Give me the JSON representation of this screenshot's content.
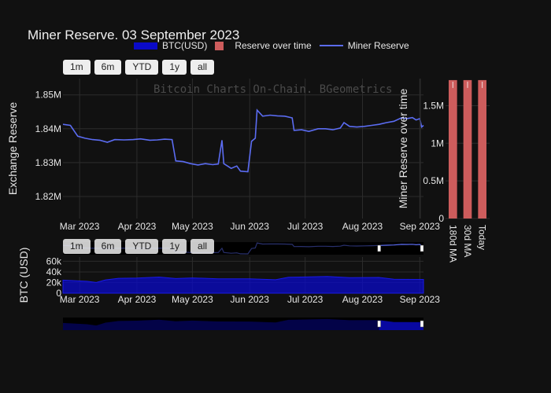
{
  "title": "Miner Reserve. 03 September 2023",
  "watermark": "Bitcoin Charts On-Chain.  BGeometrics",
  "legend": [
    {
      "label": "BTC(USD)",
      "color": "#0a0ac8"
    },
    {
      "label": "Reserve over time",
      "color": "#cd5c5c"
    },
    {
      "label": "Miner Reserve",
      "color": "#5b6cf2"
    }
  ],
  "range_buttons": [
    "1m",
    "6m",
    "YTD",
    "1y",
    "all"
  ],
  "chart_data": [
    {
      "type": "line",
      "name": "Miner Reserve",
      "xlabel": "",
      "ylabel": "Exchange Reserve",
      "x_ticks": [
        "Mar 2023",
        "Apr 2023",
        "May 2023",
        "Jun 2023",
        "Jul 2023",
        "Aug 2023",
        "Sep 2023"
      ],
      "y_ticks": [
        "1.82M",
        "1.83M",
        "1.84M",
        "1.85M"
      ],
      "ylim": [
        1.8135,
        1.8548
      ],
      "x_range": [
        "2023-02-20",
        "2023-09-03"
      ],
      "grid": true,
      "series": [
        {
          "name": "Miner Reserve",
          "color": "#5b6cf2",
          "points": [
            [
              "2023-02-20",
              1.8413
            ],
            [
              "2023-02-24",
              1.841
            ],
            [
              "2023-02-28",
              1.8378
            ],
            [
              "2023-03-04",
              1.8372
            ],
            [
              "2023-03-08",
              1.8368
            ],
            [
              "2023-03-12",
              1.8366
            ],
            [
              "2023-03-16",
              1.836
            ],
            [
              "2023-03-20",
              1.8368
            ],
            [
              "2023-03-25",
              1.8367
            ],
            [
              "2023-03-30",
              1.8368
            ],
            [
              "2023-04-03",
              1.837
            ],
            [
              "2023-04-08",
              1.8366
            ],
            [
              "2023-04-12",
              1.8367
            ],
            [
              "2023-04-16",
              1.8369
            ],
            [
              "2023-04-20",
              1.8368
            ],
            [
              "2023-04-22",
              1.8305
            ],
            [
              "2023-04-26",
              1.8303
            ],
            [
              "2023-04-30",
              1.8297
            ],
            [
              "2023-05-04",
              1.8293
            ],
            [
              "2023-05-08",
              1.8297
            ],
            [
              "2023-05-12",
              1.8294
            ],
            [
              "2023-05-15",
              1.8296
            ],
            [
              "2023-05-17",
              1.8366
            ],
            [
              "2023-05-18",
              1.8297
            ],
            [
              "2023-05-22",
              1.8283
            ],
            [
              "2023-05-25",
              1.829
            ],
            [
              "2023-05-27",
              1.8275
            ],
            [
              "2023-05-31",
              1.8273
            ],
            [
              "2023-06-02",
              1.8363
            ],
            [
              "2023-06-04",
              1.8372
            ],
            [
              "2023-06-05",
              1.8455
            ],
            [
              "2023-06-08",
              1.8437
            ],
            [
              "2023-06-12",
              1.844
            ],
            [
              "2023-06-16",
              1.8438
            ],
            [
              "2023-06-20",
              1.8437
            ],
            [
              "2023-06-24",
              1.8432
            ],
            [
              "2023-06-25",
              1.8395
            ],
            [
              "2023-06-29",
              1.8397
            ],
            [
              "2023-07-03",
              1.8392
            ],
            [
              "2023-07-08",
              1.84
            ],
            [
              "2023-07-12",
              1.84
            ],
            [
              "2023-07-16",
              1.8397
            ],
            [
              "2023-07-20",
              1.8402
            ],
            [
              "2023-07-22",
              1.8418
            ],
            [
              "2023-07-25",
              1.8407
            ],
            [
              "2023-07-29",
              1.8405
            ],
            [
              "2023-08-02",
              1.8407
            ],
            [
              "2023-08-06",
              1.841
            ],
            [
              "2023-08-10",
              1.8413
            ],
            [
              "2023-08-14",
              1.8418
            ],
            [
              "2023-08-18",
              1.8422
            ],
            [
              "2023-08-22",
              1.8432
            ],
            [
              "2023-08-25",
              1.843
            ],
            [
              "2023-08-28",
              1.8433
            ],
            [
              "2023-08-30",
              1.8426
            ],
            [
              "2023-09-01",
              1.843
            ],
            [
              "2023-09-02",
              1.8405
            ],
            [
              "2023-09-03",
              1.841
            ]
          ]
        }
      ]
    },
    {
      "type": "bar",
      "name": "Reserve over time",
      "ylabel": "Miner Reserve over time",
      "categories": [
        "180d MA",
        "30d MA",
        "Today"
      ],
      "values": [
        1840000,
        1840000,
        1840000
      ],
      "y_ticks": [
        "0",
        "0.5M",
        "1M",
        "1.5M"
      ],
      "ylim": [
        0,
        1860000
      ],
      "color": "#cd5c5c"
    },
    {
      "type": "area",
      "name": "BTC(USD)",
      "ylabel": "BTC (USD)",
      "x_ticks": [
        "Mar 2023",
        "Apr 2023",
        "May 2023",
        "Jun 2023",
        "Jul 2023",
        "Aug 2023",
        "Sep 2023"
      ],
      "y_ticks": [
        "0",
        "20k",
        "40k",
        "60k"
      ],
      "ylim": [
        0,
        68000
      ],
      "color": "#0a0ac8",
      "points": [
        [
          "2023-02-20",
          24500
        ],
        [
          "2023-03-05",
          22300
        ],
        [
          "2023-03-10",
          20100
        ],
        [
          "2023-03-15",
          25000
        ],
        [
          "2023-03-22",
          28000
        ],
        [
          "2023-04-01",
          28500
        ],
        [
          "2023-04-13",
          30300
        ],
        [
          "2023-04-22",
          27500
        ],
        [
          "2023-05-01",
          28700
        ],
        [
          "2023-05-15",
          27100
        ],
        [
          "2023-06-01",
          27000
        ],
        [
          "2023-06-15",
          25300
        ],
        [
          "2023-06-22",
          30000
        ],
        [
          "2023-07-01",
          30500
        ],
        [
          "2023-07-13",
          31400
        ],
        [
          "2023-07-25",
          29300
        ],
        [
          "2023-08-10",
          29500
        ],
        [
          "2023-08-18",
          26100
        ],
        [
          "2023-09-03",
          25900
        ]
      ]
    }
  ]
}
